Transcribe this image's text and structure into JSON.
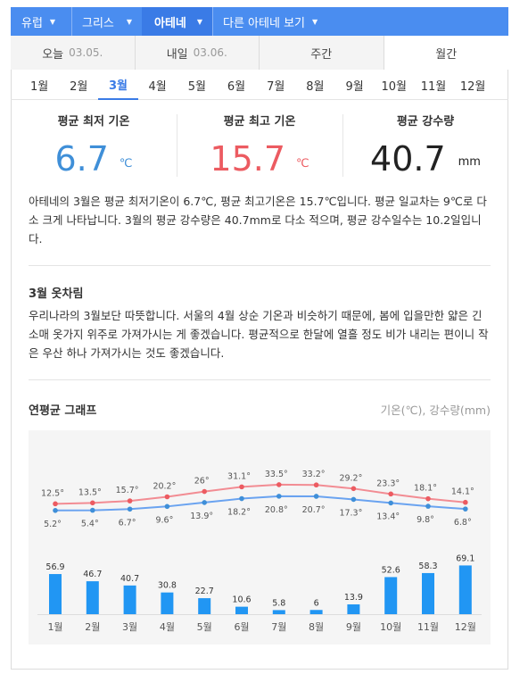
{
  "breadcrumb": [
    {
      "label": "유럽",
      "active": false
    },
    {
      "label": "그리스",
      "active": false
    },
    {
      "label": "아테네",
      "active": true
    },
    {
      "label": "다른 아테네 보기",
      "active": false
    }
  ],
  "tabs": [
    {
      "label": "오늘",
      "date": "03.05."
    },
    {
      "label": "내일",
      "date": "03.06."
    },
    {
      "label": "주간",
      "date": ""
    },
    {
      "label": "월간",
      "date": ""
    }
  ],
  "months": [
    "1월",
    "2월",
    "3월",
    "4월",
    "5월",
    "6월",
    "7월",
    "8월",
    "9월",
    "10월",
    "11월",
    "12월"
  ],
  "selected_month": "3월",
  "stats": {
    "min": {
      "label": "평균 최저 기온",
      "value": "6.7",
      "unit": "℃"
    },
    "max": {
      "label": "평균 최고 기온",
      "value": "15.7",
      "unit": "℃"
    },
    "rain": {
      "label": "평균 강수량",
      "value": "40.7",
      "unit": "mm"
    }
  },
  "summary": "아테네의 3월은 평균 최저기온이 6.7℃, 평균 최고기온은 15.7℃입니다. 평균 일교차는 9℃로 다소 크게 나타납니다. 3월의 평균 강수량은 40.7mm로 다소 적으며, 평균 강수일수는 10.2일입니다.",
  "clothing": {
    "title": "3월 옷차림",
    "text": "우리나라의 3월보단 따뜻합니다. 서울의 4월 상순 기온과 비슷하기 때문에, 봄에 입을만한 얇은 긴소매 옷가지 위주로 가져가시는 게 좋겠습니다. 평균적으로 한달에 열흘 정도 비가 내리는 편이니 작은 우산 하나 가져가시는 것도 좋겠습니다."
  },
  "graph": {
    "title": "연평균 그래프",
    "units_note": "기온(℃), 강수량(mm)"
  },
  "colors": {
    "accent": "#3a7be6",
    "breadcrumb_bg": "#4a8df0",
    "min_temp": "#3f8fd8",
    "max_temp": "#ec5b61",
    "line_min": "#6aa3f0",
    "line_max": "#f28c93",
    "bar": "#2196f3"
  },
  "chart_data": {
    "type": "bar+line",
    "categories": [
      "1월",
      "2월",
      "3월",
      "4월",
      "5월",
      "6월",
      "7월",
      "8월",
      "9월",
      "10월",
      "11월",
      "12월"
    ],
    "series": [
      {
        "name": "평균 최고 기온",
        "kind": "line",
        "values": [
          12.5,
          13.5,
          15.7,
          20.2,
          26,
          31.1,
          33.5,
          33.2,
          29.2,
          23.3,
          18.1,
          14.1
        ],
        "labels": [
          "12.5°",
          "13.5°",
          "15.7°",
          "20.2°",
          "26°",
          "31.1°",
          "33.5°",
          "33.2°",
          "29.2°",
          "23.3°",
          "18.1°",
          "14.1°"
        ]
      },
      {
        "name": "평균 최저 기온",
        "kind": "line",
        "values": [
          5.2,
          5.4,
          6.7,
          9.6,
          13.9,
          18.2,
          20.8,
          20.7,
          17.3,
          13.4,
          9.8,
          6.8
        ],
        "labels": [
          "5.2°",
          "5.4°",
          "6.7°",
          "9.6°",
          "13.9°",
          "18.2°",
          "20.8°",
          "20.7°",
          "17.3°",
          "13.4°",
          "9.8°",
          "6.8°"
        ]
      },
      {
        "name": "평균 강수량",
        "kind": "bar",
        "values": [
          56.9,
          46.7,
          40.7,
          30.8,
          22.7,
          10.6,
          5.8,
          6,
          13.9,
          52.6,
          58.3,
          69.1
        ],
        "labels": [
          "56.9",
          "46.7",
          "40.7",
          "30.8",
          "22.7",
          "10.6",
          "5.8",
          "6",
          "13.9",
          "52.6",
          "58.3",
          "69.1"
        ]
      }
    ]
  }
}
